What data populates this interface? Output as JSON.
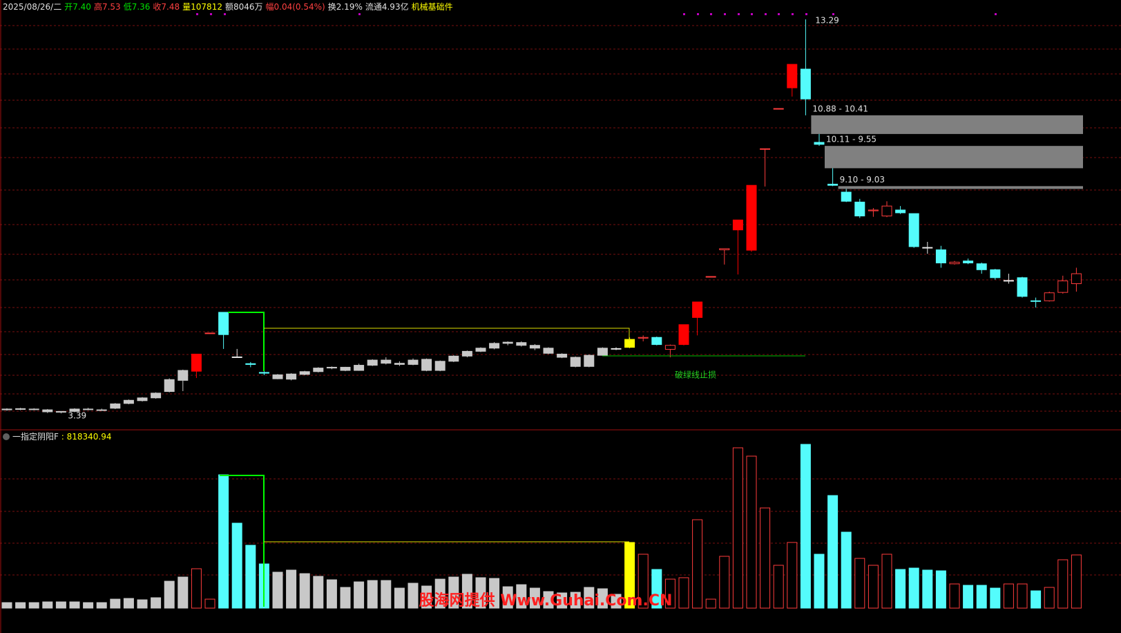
{
  "header": {
    "date": "2025/08/26/二",
    "items": [
      {
        "text": "开7.40",
        "color": "#00e000"
      },
      {
        "text": "高7.53",
        "color": "#ff4040"
      },
      {
        "text": "低7.36",
        "color": "#00e000"
      },
      {
        "text": "收7.48",
        "color": "#ff4040"
      },
      {
        "text": "量107812",
        "color": "#ffff00"
      },
      {
        "text": "额8046万",
        "color": "#e0e0e0"
      },
      {
        "text": "幅0.04(0.54%)",
        "color": "#ff4040"
      },
      {
        "text": "换2.19%",
        "color": "#e0e0e0"
      },
      {
        "text": "流通4.93亿",
        "color": "#e0e0e0"
      },
      {
        "text": "机械基础件",
        "color": "#ffff00"
      }
    ]
  },
  "watermark": "股海网提供 Www.Guhai.Com.CN",
  "chart_data": [
    {
      "type": "candlestick",
      "ylim": [
        3.0,
        13.7
      ],
      "open": [
        3.5,
        3.49,
        3.5,
        3.48,
        3.42,
        3.44,
        3.5,
        3.48,
        3.52,
        3.64,
        3.71,
        3.78,
        3.94,
        4.22,
        4.45,
        5.41,
        5.93,
        4.81,
        4.64,
        4.42,
        4.36,
        4.25,
        4.37,
        4.44,
        4.53,
        4.55,
        4.47,
        4.6,
        4.73,
        4.65,
        4.62,
        4.75,
        4.47,
        4.7,
        4.83,
        4.95,
        5.03,
        5.15,
        5.17,
        5.1,
        5.03,
        4.88,
        4.8,
        4.57,
        4.85,
        5.02,
        5.05,
        5.28,
        5.3,
        5.0,
        5.12,
        5.8,
        6.83,
        7.5,
        8.0,
        7.49,
        10.04,
        11.05,
        11.57,
        12.04,
        10.2,
        9.15,
        8.95,
        8.7,
        8.48,
        8.35,
        8.5,
        8.41,
        7.56,
        7.5,
        7.15,
        7.22,
        7.15,
        7.0,
        6.73,
        6.8,
        6.22,
        6.22,
        6.43,
        6.65
      ],
      "high": [
        3.52,
        3.53,
        3.52,
        3.5,
        3.45,
        3.52,
        3.53,
        3.51,
        3.65,
        3.74,
        3.8,
        3.92,
        4.27,
        4.49,
        4.88,
        5.41,
        5.93,
        5.01,
        4.68,
        4.45,
        4.38,
        4.4,
        4.46,
        4.55,
        4.57,
        4.56,
        4.64,
        4.75,
        4.8,
        4.7,
        4.77,
        4.77,
        4.72,
        4.85,
        4.97,
        5.05,
        5.18,
        5.2,
        5.2,
        5.13,
        5.05,
        4.9,
        4.82,
        4.87,
        5.05,
        5.05,
        5.3,
        5.35,
        5.32,
        5.12,
        5.62,
        6.19,
        6.83,
        7.53,
        8.25,
        9.12,
        10.04,
        11.05,
        12.16,
        13.29,
        10.41,
        9.55,
        9.03,
        8.78,
        8.55,
        8.72,
        8.6,
        8.41,
        7.7,
        7.6,
        7.22,
        7.28,
        7.18,
        7.02,
        6.9,
        6.82,
        6.3,
        6.45,
        6.85,
        7.05
      ],
      "low": [
        3.46,
        3.47,
        3.47,
        3.4,
        3.39,
        3.42,
        3.47,
        3.46,
        3.5,
        3.62,
        3.69,
        3.76,
        3.92,
        3.95,
        4.28,
        5.41,
        5.01,
        4.8,
        4.55,
        4.35,
        4.25,
        4.22,
        4.35,
        4.42,
        4.5,
        4.45,
        4.46,
        4.58,
        4.62,
        4.58,
        4.6,
        4.45,
        4.45,
        4.68,
        4.8,
        4.93,
        5.0,
        5.1,
        5.07,
        4.98,
        4.88,
        4.78,
        4.55,
        4.55,
        4.83,
        4.98,
        5.03,
        5.2,
        5.1,
        4.8,
        5.1,
        5.35,
        6.83,
        7.13,
        6.88,
        7.45,
        9.09,
        11.05,
        11.35,
        10.88,
        10.11,
        9.1,
        8.7,
        8.3,
        8.33,
        8.32,
        8.4,
        7.55,
        7.4,
        7.05,
        7.13,
        7.14,
        6.9,
        6.75,
        6.65,
        6.3,
        6.05,
        6.2,
        6.4,
        6.45
      ],
      "close": [
        3.48,
        3.51,
        3.49,
        3.43,
        3.44,
        3.5,
        3.49,
        3.47,
        3.63,
        3.72,
        3.78,
        3.9,
        4.24,
        4.47,
        4.88,
        5.41,
        5.37,
        4.81,
        4.62,
        4.4,
        4.26,
        4.38,
        4.44,
        4.53,
        4.55,
        4.47,
        4.6,
        4.73,
        4.65,
        4.62,
        4.73,
        4.47,
        4.7,
        4.83,
        4.95,
        5.03,
        5.15,
        5.18,
        5.1,
        5.03,
        4.9,
        4.8,
        4.57,
        4.85,
        5.03,
        5.02,
        5.25,
        5.3,
        5.12,
        5.1,
        5.62,
        6.19,
        6.83,
        7.53,
        8.25,
        9.12,
        10.04,
        11.05,
        12.16,
        11.29,
        10.15,
        9.12,
        8.72,
        8.35,
        8.5,
        8.6,
        8.43,
        7.58,
        7.56,
        7.17,
        7.19,
        7.17,
        7.0,
        6.8,
        6.73,
        6.33,
        6.22,
        6.42,
        6.72,
        6.9
      ],
      "styles": [
        "g",
        "g",
        "g",
        "g",
        "g",
        "g",
        "g",
        "g",
        "g",
        "g",
        "g",
        "g",
        "g",
        "g",
        "R",
        "r",
        "c",
        "w",
        "c",
        "c",
        "g",
        "g",
        "g",
        "g",
        "g",
        "g",
        "g",
        "g",
        "g",
        "g",
        "g",
        "g",
        "g",
        "g",
        "g",
        "g",
        "g",
        "g",
        "g",
        "g",
        "g",
        "g",
        "g",
        "g",
        "g",
        "w",
        "y",
        "r",
        "c",
        "r",
        "R",
        "R",
        "r",
        "r",
        "R",
        "R",
        "r",
        "r",
        "R",
        "c",
        "c",
        "c",
        "c",
        "c",
        "r",
        "r",
        "c",
        "c",
        "w",
        "c",
        "r",
        "c",
        "c",
        "c",
        "w",
        "c",
        "c",
        "r",
        "r",
        "r"
      ],
      "palette": {
        "g": {
          "color": "#c8c8c8",
          "fill": true
        },
        "w": {
          "color": "#e8e8e8",
          "fill": true
        },
        "c": {
          "color": "#54fcfc",
          "fill": true
        },
        "r": {
          "color": "#ff3c3c",
          "fill": false
        },
        "R": {
          "color": "#ff0000",
          "fill": true
        },
        "y": {
          "color": "#ffff00",
          "fill": true
        }
      },
      "gaps": [
        {
          "high": 10.88,
          "low": 10.41,
          "label": "10.88 - 10.41"
        },
        {
          "high": 10.11,
          "low": 9.55,
          "label": "10.11 - 9.55"
        },
        {
          "high": 9.1,
          "low": 9.03,
          "label": "9.10 - 9.03"
        }
      ],
      "annotation": "破绿线止损"
    },
    {
      "type": "bar",
      "title": "一指定阴阳F",
      "ylim": [
        0,
        2600000
      ],
      "values": [
        85000,
        85000,
        85000,
        96000,
        96000,
        96000,
        85000,
        85000,
        138000,
        149000,
        128000,
        160000,
        414000,
        478000,
        606000,
        138000,
        2051000,
        1307000,
        967000,
        680000,
        553000,
        585000,
        531000,
        489000,
        436000,
        319000,
        404000,
        425000,
        425000,
        308000,
        383000,
        340000,
        446000,
        478000,
        521000,
        468000,
        457000,
        329000,
        361000,
        308000,
        255000,
        234000,
        244000,
        319000,
        298000,
        213000,
        1010000,
        829000,
        595000,
        446000,
        468000,
        1360000,
        138000,
        797000,
        2466000,
        2338000,
        1541000,
        659000,
        1010000,
        2519000,
        829000,
        1732000,
        1169000,
        765000,
        659000,
        829000,
        595000,
        616000,
        585000,
        574000,
        372000,
        351000,
        351000,
        308000,
        372000,
        372000,
        266000,
        319000,
        744000,
        818340.94
      ],
      "styles": [
        "g",
        "g",
        "g",
        "g",
        "g",
        "g",
        "g",
        "g",
        "g",
        "g",
        "g",
        "g",
        "g",
        "g",
        "r",
        "r",
        "c",
        "c",
        "c",
        "c",
        "g",
        "g",
        "g",
        "g",
        "g",
        "g",
        "g",
        "g",
        "g",
        "g",
        "g",
        "g",
        "g",
        "g",
        "g",
        "g",
        "g",
        "g",
        "g",
        "g",
        "g",
        "g",
        "g",
        "g",
        "g",
        "g",
        "y",
        "r",
        "c",
        "r",
        "r",
        "r",
        "r",
        "r",
        "r",
        "r",
        "r",
        "r",
        "r",
        "c",
        "c",
        "c",
        "c",
        "r",
        "r",
        "r",
        "c",
        "c",
        "c",
        "c",
        "r",
        "c",
        "c",
        "c",
        "r",
        "r",
        "c",
        "r",
        "r",
        "r"
      ]
    }
  ]
}
